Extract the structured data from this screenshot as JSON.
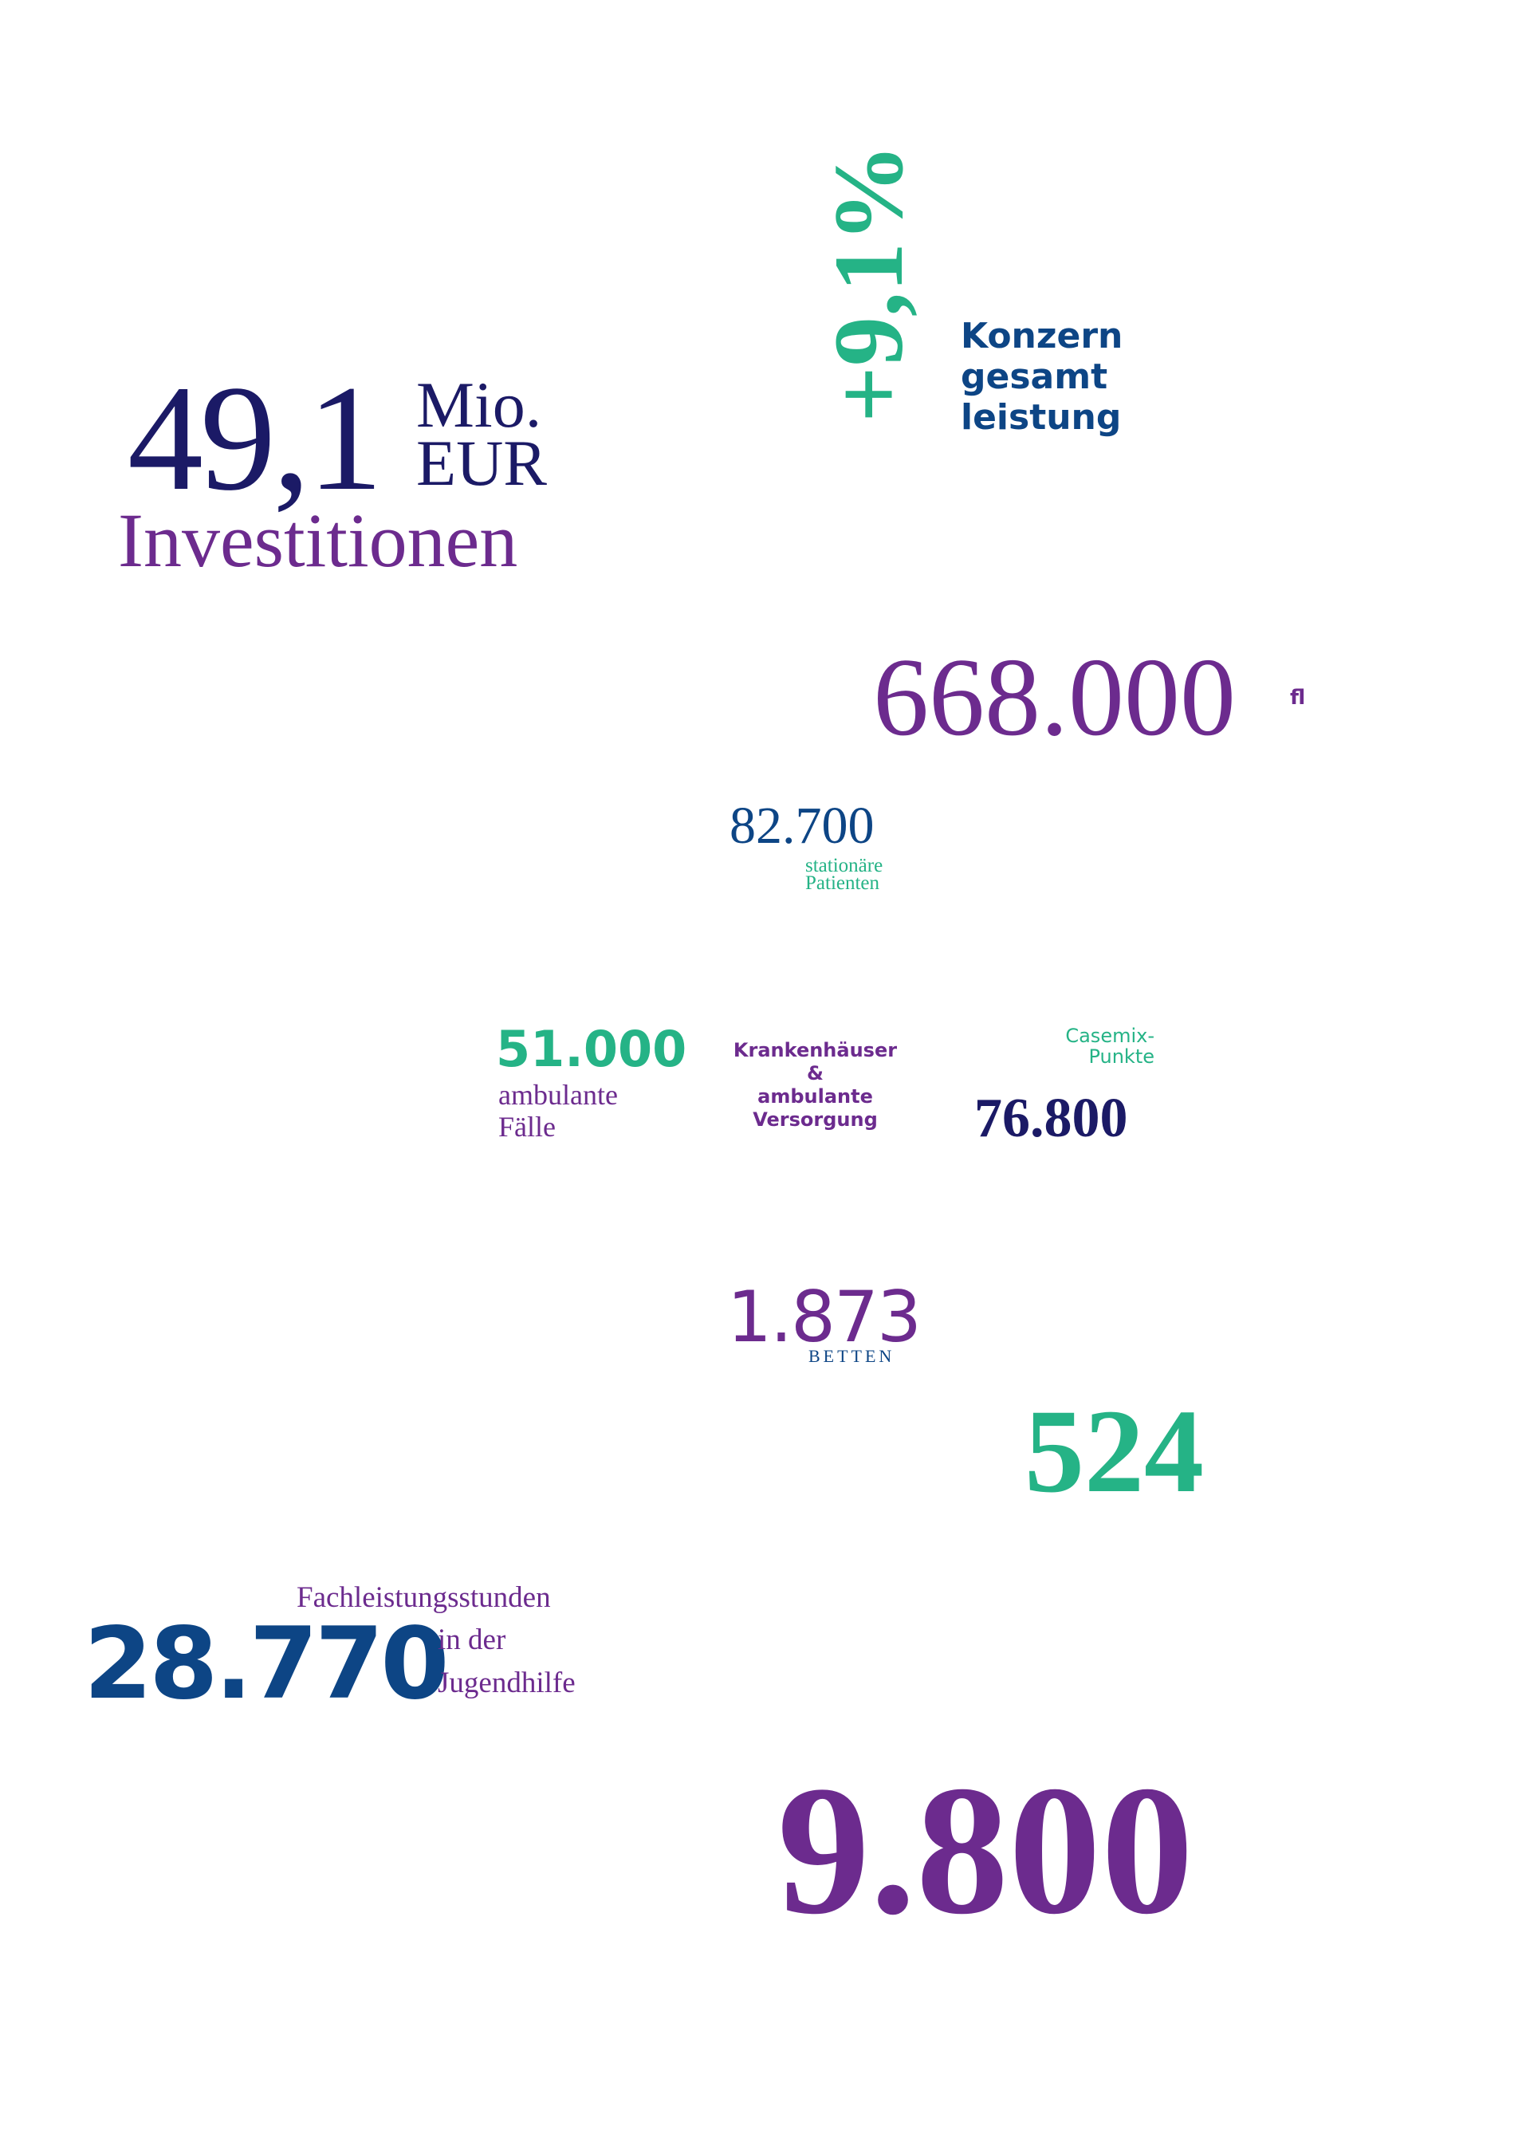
{
  "colors": {
    "navy": "#1b1a66",
    "blue": "#0d4585",
    "purple": "#6c2b8e",
    "green": "#25b386"
  },
  "investments": {
    "value": "49,1",
    "unit_line1": "Mio.",
    "unit_line2": "EUR",
    "label": "Investitionen"
  },
  "group_performance": {
    "change": "+9,1%",
    "label_line1": "Konzern",
    "label_line2": "gesamt",
    "label_line3": "leistung"
  },
  "big_figure": {
    "value": "668.000",
    "cut_label": "fl"
  },
  "inpatients": {
    "value": "82.700",
    "label_line1": "stationäre",
    "label_line2": "Patienten"
  },
  "outpatient_cases": {
    "value": "51.000",
    "label_line1": "ambulante",
    "label_line2": "Fälle"
  },
  "segment": {
    "line1": "Krankenhäuser",
    "line2": "&",
    "line3": "ambulante",
    "line4": "Versorgung"
  },
  "casemix": {
    "label_line1": "Casemix-",
    "label_line2": "Punkte",
    "value": "76.800"
  },
  "beds": {
    "value": "1.873",
    "label": "BETTEN"
  },
  "figure_524": {
    "value": "524"
  },
  "youth_welfare": {
    "value": "28.770",
    "label_line1": "Fachleistungsstunden",
    "label_line2": "in der",
    "label_line3": "Jugendhilfe"
  },
  "figure_9800": {
    "value": "9.800"
  }
}
